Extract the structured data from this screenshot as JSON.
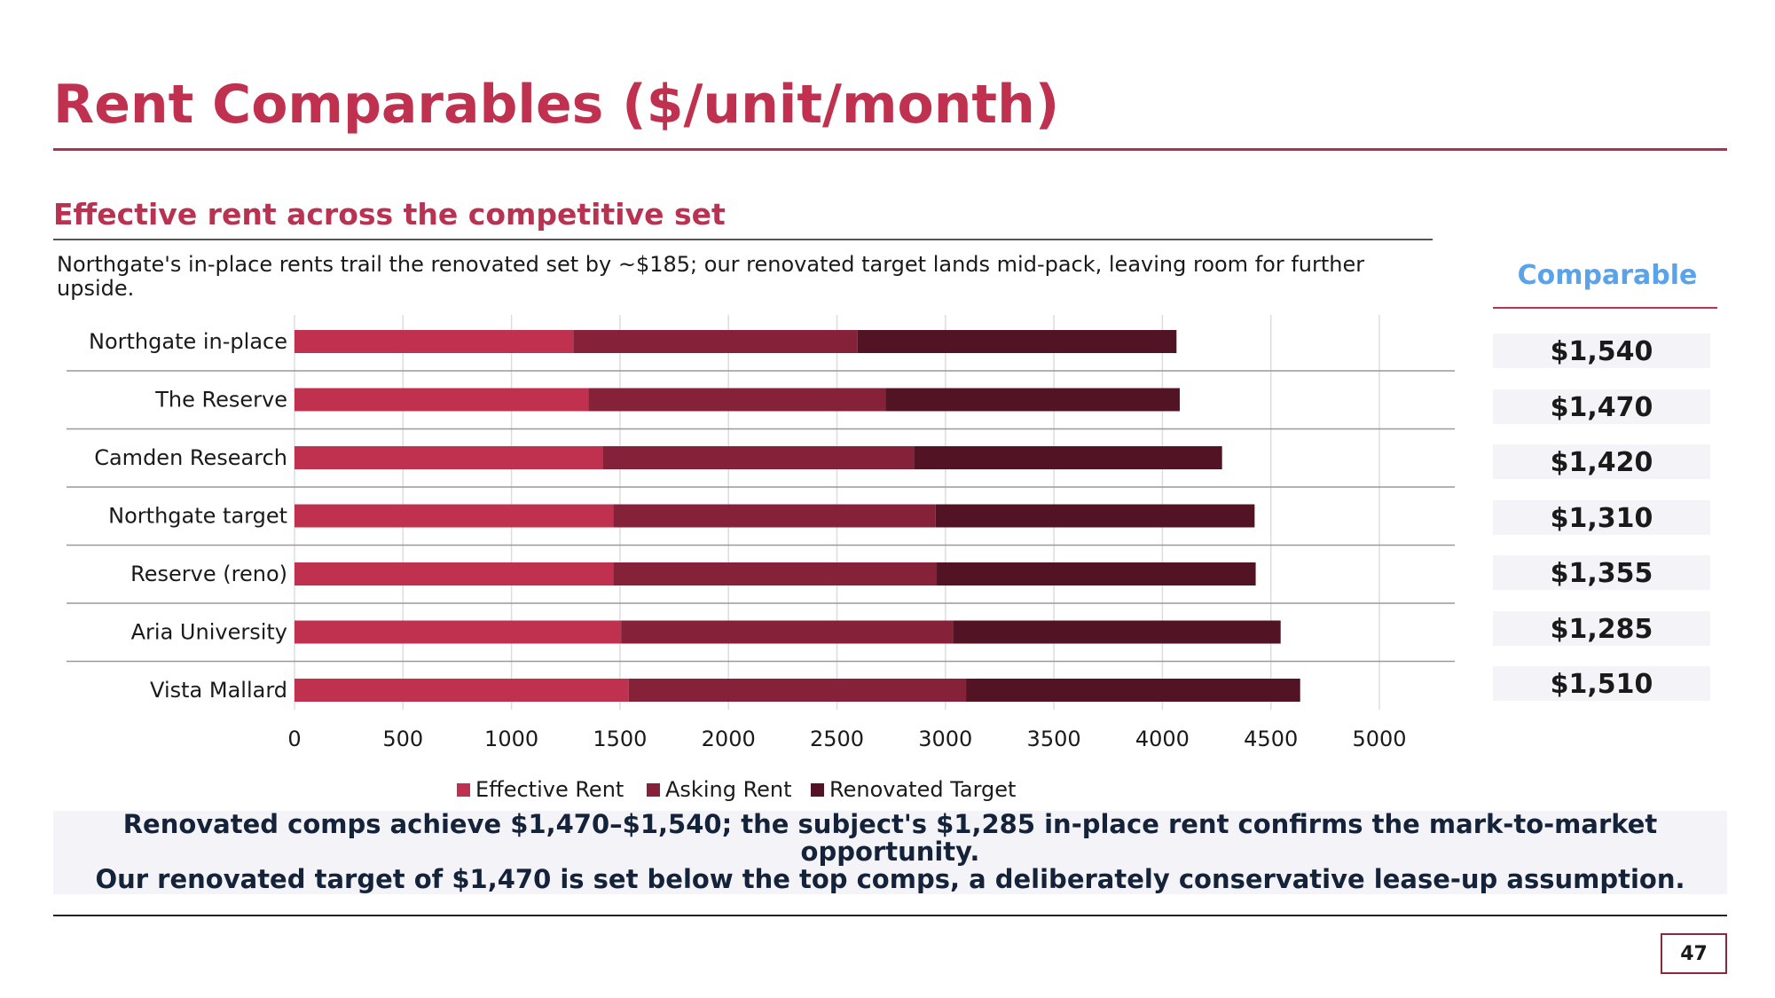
{
  "slide": {
    "title": "Rent Comparables ($/unit/month)",
    "section_heading": "Effective rent across the competitive set",
    "description": "Northgate's in-place rents trail the renovated set by ~$185; our renovated target lands mid-pack, leaving room for further upside.",
    "page_number": "47"
  },
  "side_panel": {
    "heading": "Comparable",
    "values": [
      "$1,540",
      "$1,470",
      "$1,420",
      "$1,310",
      "$1,355",
      "$1,285",
      "$1,510"
    ]
  },
  "callout": {
    "line1": "Renovated comps achieve $1,470–$1,540; the subject's $1,285 in-place rent confirms the mark-to-market opportunity.",
    "line2": "Our renovated target of $1,470 is set below the top comps, a deliberately conservative lease-up assumption."
  },
  "colors": {
    "accent": "#c0314f",
    "effective": "#c0314f",
    "asking": "#85223a",
    "renovated": "#521424",
    "side_heading": "#5aa2ea"
  },
  "chart_data": {
    "type": "bar",
    "orientation": "horizontal",
    "stacked": true,
    "categories": [
      "Northgate in-place",
      "The Reserve",
      "Camden Research",
      "Northgate target",
      "Reserve (reno)",
      "Aria University",
      "Vista Mallard"
    ],
    "series": [
      {
        "name": "Effective Rent",
        "values": [
          1285,
          1355,
          1420,
          1470,
          1470,
          1505,
          1540
        ],
        "color": "#c0314f"
      },
      {
        "name": "Asking Rent",
        "values": [
          1310,
          1370,
          1435,
          1485,
          1490,
          1530,
          1555
        ],
        "color": "#85223a"
      },
      {
        "name": "Renovated Target",
        "values": [
          1470,
          1355,
          1420,
          1470,
          1470,
          1510,
          1540
        ],
        "color": "#521424"
      }
    ],
    "xlim": [
      0,
      5000
    ],
    "xticks": [
      0,
      500,
      1000,
      1500,
      2000,
      2500,
      3000,
      3500,
      4000,
      4500,
      5000
    ],
    "grid": true,
    "legend": "bottom"
  }
}
